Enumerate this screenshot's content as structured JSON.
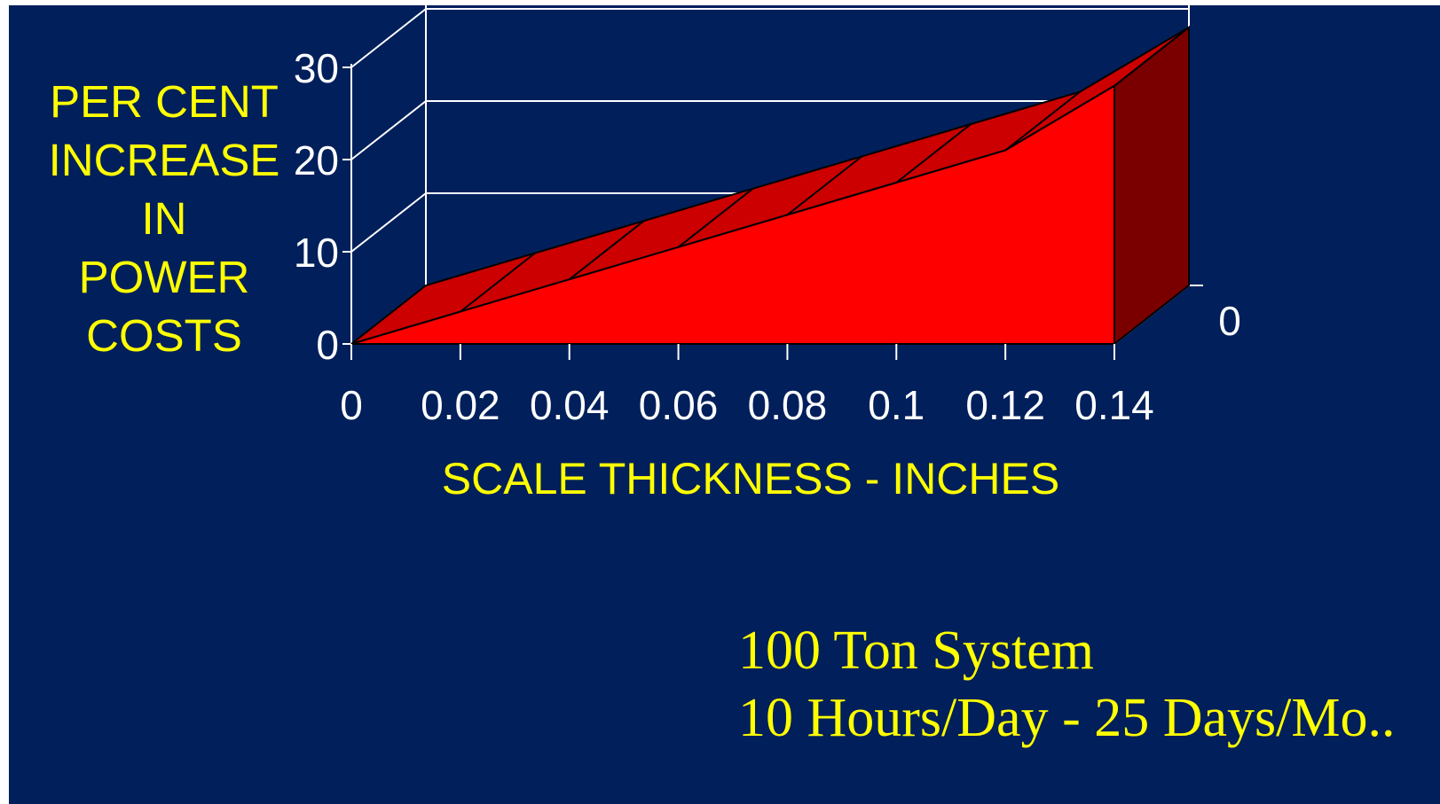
{
  "chart_data": {
    "type": "area",
    "style": "3d",
    "x": [
      0,
      0.02,
      0.04,
      0.06,
      0.08,
      0.1,
      0.12,
      0.14
    ],
    "values": [
      0,
      3.5,
      7,
      10.5,
      14,
      17.5,
      21,
      28
    ],
    "x_tick_labels": [
      "0",
      "0.02",
      "0.04",
      "0.06",
      "0.08",
      "0.1",
      "0.12",
      "0.14"
    ],
    "y_tick_labels": [
      "0",
      "10",
      "20",
      "30"
    ],
    "depth_axis_label": "0",
    "ylim": [
      0,
      30
    ],
    "xlim": [
      0,
      0.14
    ],
    "xlabel": "SCALE THICKNESS - INCHES",
    "ylabel_lines": [
      "PER CENT",
      "INCREASE",
      "IN",
      "POWER",
      "COSTS"
    ],
    "grid": "horizontal",
    "colors": {
      "background": "#001F5B",
      "front_face": "#FF0000",
      "top_face": "#CC0000",
      "side_face": "#7A0000",
      "axis_text": "#FFFFFF",
      "label_text": "#FFFF00",
      "grid": "#FFFFFF"
    }
  },
  "notes": [
    "100 Ton System",
    "10 Hours/Day - 25 Days/Mo.."
  ]
}
